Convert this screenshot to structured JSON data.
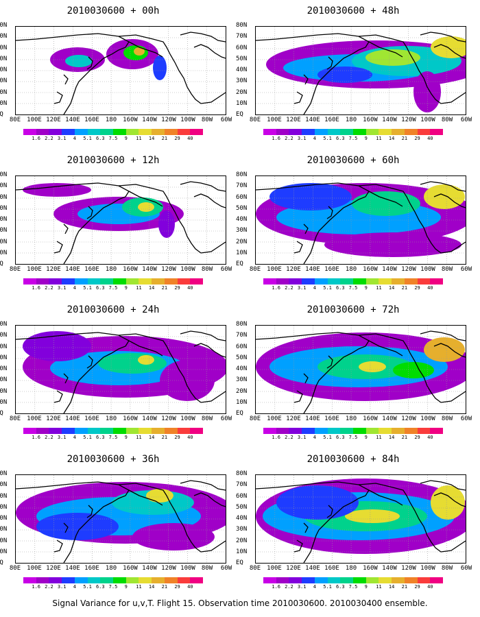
{
  "lat_labels": [
    "80N",
    "70N",
    "60N",
    "50N",
    "40N",
    "30N",
    "20N",
    "10N",
    "EQ"
  ],
  "lon_labels": [
    "80E",
    "100E",
    "120E",
    "140E",
    "160E",
    "180",
    "160W",
    "140W",
    "120W",
    "100W",
    "80W",
    "60W"
  ],
  "colorbar": {
    "labels": [
      "1.6",
      "2.2",
      "3.1",
      "4",
      "5.1",
      "6.3",
      "7.5",
      "9",
      "11",
      "14",
      "21",
      "29",
      "40"
    ],
    "colors": [
      "#a000c8",
      "#8200dc",
      "#1e3cff",
      "#00a0ff",
      "#00c8c8",
      "#00d28c",
      "#00dc00",
      "#a0e632",
      "#e6dc32",
      "#e6af2d",
      "#f08228",
      "#fa3c3c",
      "#f00082"
    ]
  },
  "panels": [
    {
      "title": "2010030600 + 00h"
    },
    {
      "title": "2010030600 + 48h"
    },
    {
      "title": "2010030600 + 12h"
    },
    {
      "title": "2010030600 + 60h"
    },
    {
      "title": "2010030600 + 24h"
    },
    {
      "title": "2010030600 + 72h"
    },
    {
      "title": "2010030600 + 36h"
    },
    {
      "title": "2010030600 + 84h"
    }
  ],
  "footer": "Signal Variance for u,v,T. Flight 15. Observation time 2010030600. 2010030400 ensemble."
}
